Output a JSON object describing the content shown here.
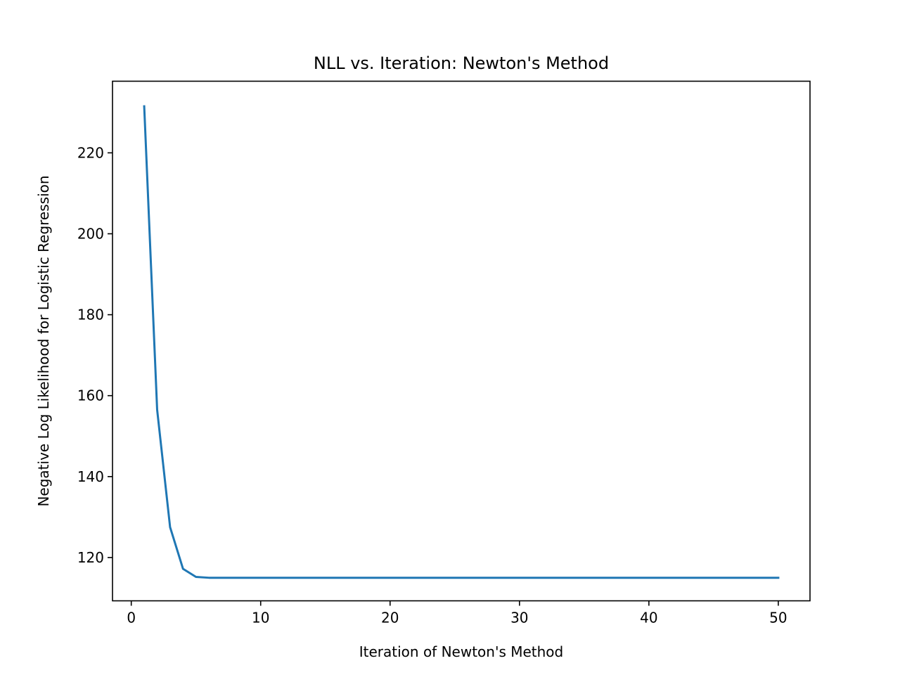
{
  "chart_data": {
    "type": "line",
    "title": "NLL vs. Iteration: Newton's Method",
    "xlabel": "Iteration of Newton's Method",
    "ylabel": "Negative Log Likelihood for Logistic Regression",
    "xlim": [
      -1.45,
      52.45
    ],
    "ylim": [
      109.3,
      237.7
    ],
    "xticks": [
      0,
      10,
      20,
      30,
      40,
      50
    ],
    "yticks": [
      120,
      140,
      160,
      180,
      200,
      220
    ],
    "grid": false,
    "series": [
      {
        "color": "#1f77b4",
        "x": [
          1,
          2,
          3,
          4,
          5,
          6,
          7,
          8,
          9,
          10,
          11,
          12,
          13,
          14,
          15,
          16,
          17,
          18,
          19,
          20,
          21,
          22,
          23,
          24,
          25,
          26,
          27,
          28,
          29,
          30,
          31,
          32,
          33,
          34,
          35,
          36,
          37,
          38,
          39,
          40,
          41,
          42,
          43,
          44,
          45,
          46,
          47,
          48,
          49,
          50
        ],
        "values": [
          231.5,
          156.5,
          127.5,
          117.2,
          115.2,
          115.0,
          115.0,
          115.0,
          115.0,
          115.0,
          115.0,
          115.0,
          115.0,
          115.0,
          115.0,
          115.0,
          115.0,
          115.0,
          115.0,
          115.0,
          115.0,
          115.0,
          115.0,
          115.0,
          115.0,
          115.0,
          115.0,
          115.0,
          115.0,
          115.0,
          115.0,
          115.0,
          115.0,
          115.0,
          115.0,
          115.0,
          115.0,
          115.0,
          115.0,
          115.0,
          115.0,
          115.0,
          115.0,
          115.0,
          115.0,
          115.0,
          115.0,
          115.0,
          115.0,
          115.0
        ]
      }
    ]
  }
}
